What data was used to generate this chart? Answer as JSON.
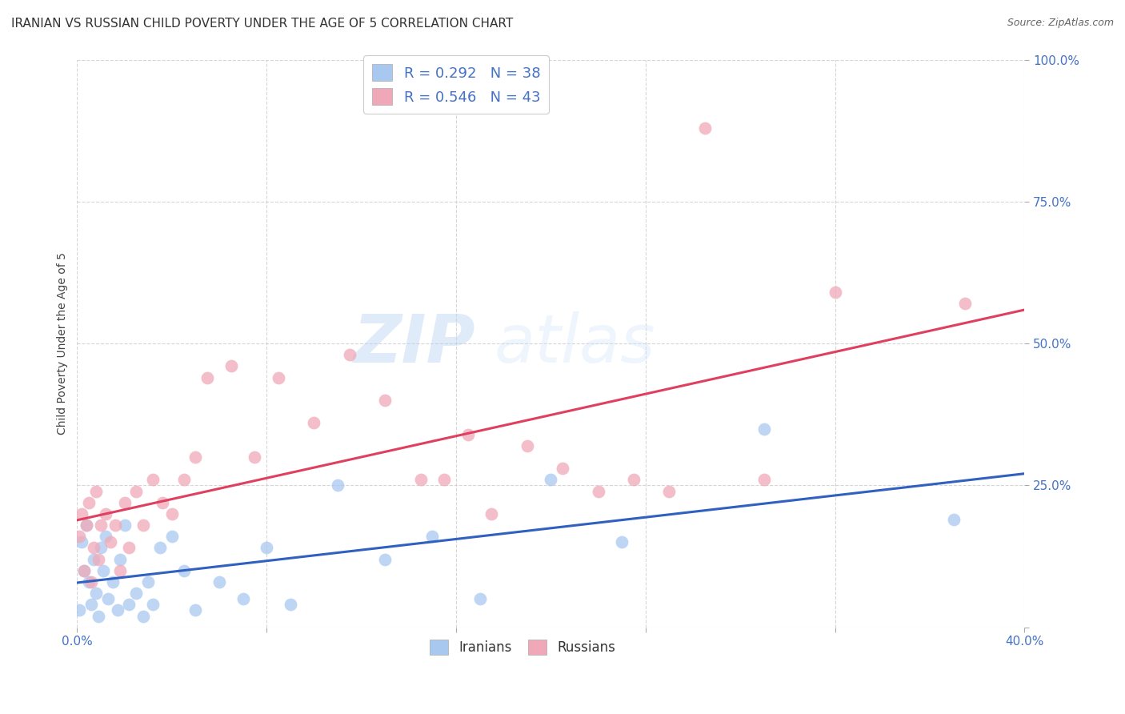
{
  "title": "IRANIAN VS RUSSIAN CHILD POVERTY UNDER THE AGE OF 5 CORRELATION CHART",
  "source": "Source: ZipAtlas.com",
  "xlabel_iranians": "Iranians",
  "xlabel_russians": "Russians",
  "ylabel": "Child Poverty Under the Age of 5",
  "xmin": 0.0,
  "xmax": 0.4,
  "ymin": 0.0,
  "ymax": 1.0,
  "x_ticks": [
    0.0,
    0.08,
    0.16,
    0.24,
    0.32,
    0.4
  ],
  "x_tick_labels": [
    "0.0%",
    "",
    "",
    "",
    "",
    "40.0%"
  ],
  "y_ticks": [
    0.0,
    0.25,
    0.5,
    0.75,
    1.0
  ],
  "y_tick_labels": [
    "",
    "25.0%",
    "50.0%",
    "75.0%",
    "100.0%"
  ],
  "iranians_R": "0.292",
  "iranians_N": "38",
  "russians_R": "0.546",
  "russians_N": "43",
  "iranians_color": "#a8c8f0",
  "russians_color": "#f0a8b8",
  "iranians_line_color": "#3060c0",
  "russians_line_color": "#e04060",
  "background_color": "#ffffff",
  "grid_color": "#cccccc",
  "iranians_x": [
    0.001,
    0.002,
    0.003,
    0.004,
    0.005,
    0.006,
    0.007,
    0.008,
    0.009,
    0.01,
    0.011,
    0.012,
    0.013,
    0.015,
    0.017,
    0.018,
    0.02,
    0.022,
    0.025,
    0.028,
    0.03,
    0.032,
    0.035,
    0.04,
    0.045,
    0.05,
    0.06,
    0.07,
    0.08,
    0.09,
    0.11,
    0.13,
    0.15,
    0.17,
    0.2,
    0.23,
    0.29,
    0.37
  ],
  "iranians_y": [
    0.03,
    0.15,
    0.1,
    0.18,
    0.08,
    0.04,
    0.12,
    0.06,
    0.02,
    0.14,
    0.1,
    0.16,
    0.05,
    0.08,
    0.03,
    0.12,
    0.18,
    0.04,
    0.06,
    0.02,
    0.08,
    0.04,
    0.14,
    0.16,
    0.1,
    0.03,
    0.08,
    0.05,
    0.14,
    0.04,
    0.25,
    0.12,
    0.16,
    0.05,
    0.26,
    0.15,
    0.35,
    0.19
  ],
  "russians_x": [
    0.001,
    0.002,
    0.003,
    0.004,
    0.005,
    0.006,
    0.007,
    0.008,
    0.009,
    0.01,
    0.012,
    0.014,
    0.016,
    0.018,
    0.02,
    0.022,
    0.025,
    0.028,
    0.032,
    0.036,
    0.04,
    0.045,
    0.05,
    0.055,
    0.065,
    0.075,
    0.085,
    0.1,
    0.115,
    0.13,
    0.145,
    0.155,
    0.165,
    0.175,
    0.19,
    0.205,
    0.22,
    0.235,
    0.25,
    0.265,
    0.29,
    0.32,
    0.375
  ],
  "russians_y": [
    0.16,
    0.2,
    0.1,
    0.18,
    0.22,
    0.08,
    0.14,
    0.24,
    0.12,
    0.18,
    0.2,
    0.15,
    0.18,
    0.1,
    0.22,
    0.14,
    0.24,
    0.18,
    0.26,
    0.22,
    0.2,
    0.26,
    0.3,
    0.44,
    0.46,
    0.3,
    0.44,
    0.36,
    0.48,
    0.4,
    0.26,
    0.26,
    0.34,
    0.2,
    0.32,
    0.28,
    0.24,
    0.26,
    0.24,
    0.88,
    0.26,
    0.59,
    0.57
  ],
  "iranians_scatter_size": 130,
  "russians_scatter_size": 130,
  "title_fontsize": 11,
  "axis_label_fontsize": 10,
  "tick_fontsize": 11,
  "legend_fontsize": 13,
  "watermark_zip": "ZIP",
  "watermark_atlas": "atlas"
}
